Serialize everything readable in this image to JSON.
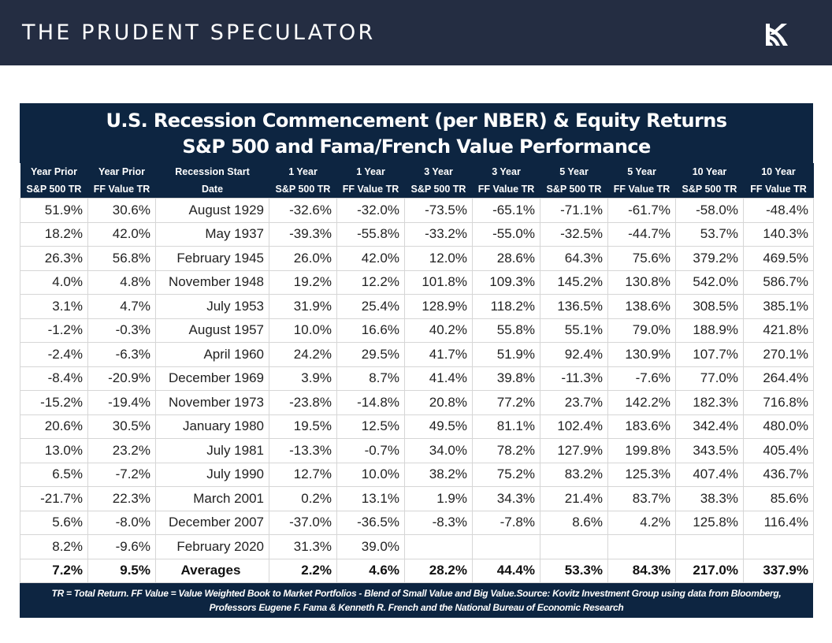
{
  "header": {
    "brand": "THE PRUDENT SPECULATOR",
    "logo_icon": "kovitz-k-logo"
  },
  "table": {
    "title": "U.S. Recession Commencement (per NBER) & Equity Returns",
    "subtitle": "S&P 500 and Fama/French Value Performance",
    "columns": [
      {
        "line1": "Year Prior",
        "line2": "S&P 500 TR"
      },
      {
        "line1": "Year Prior",
        "line2": "FF Value TR"
      },
      {
        "line1": "Recession Start",
        "line2": "Date"
      },
      {
        "line1": "1 Year",
        "line2": "S&P 500 TR"
      },
      {
        "line1": "1 Year",
        "line2": "FF Value TR"
      },
      {
        "line1": "3 Year",
        "line2": "S&P 500 TR"
      },
      {
        "line1": "3 Year",
        "line2": "FF Value TR"
      },
      {
        "line1": "5 Year",
        "line2": "S&P 500 TR"
      },
      {
        "line1": "5 Year",
        "line2": "FF Value TR"
      },
      {
        "line1": "10 Year",
        "line2": "S&P 500 TR"
      },
      {
        "line1": "10 Year",
        "line2": "FF Value TR"
      }
    ],
    "rows": [
      [
        "51.9%",
        "30.6%",
        "August 1929",
        "-32.6%",
        "-32.0%",
        "-73.5%",
        "-65.1%",
        "-71.1%",
        "-61.7%",
        "-58.0%",
        "-48.4%"
      ],
      [
        "18.2%",
        "42.0%",
        "May 1937",
        "-39.3%",
        "-55.8%",
        "-33.2%",
        "-55.0%",
        "-32.5%",
        "-44.7%",
        "53.7%",
        "140.3%"
      ],
      [
        "26.3%",
        "56.8%",
        "February 1945",
        "26.0%",
        "42.0%",
        "12.0%",
        "28.6%",
        "64.3%",
        "75.6%",
        "379.2%",
        "469.5%"
      ],
      [
        "4.0%",
        "4.8%",
        "November 1948",
        "19.2%",
        "12.2%",
        "101.8%",
        "109.3%",
        "145.2%",
        "130.8%",
        "542.0%",
        "586.7%"
      ],
      [
        "3.1%",
        "4.7%",
        "July 1953",
        "31.9%",
        "25.4%",
        "128.9%",
        "118.2%",
        "136.5%",
        "138.6%",
        "308.5%",
        "385.1%"
      ],
      [
        "-1.2%",
        "-0.3%",
        "August 1957",
        "10.0%",
        "16.6%",
        "40.2%",
        "55.8%",
        "55.1%",
        "79.0%",
        "188.9%",
        "421.8%"
      ],
      [
        "-2.4%",
        "-6.3%",
        "April 1960",
        "24.2%",
        "29.5%",
        "41.7%",
        "51.9%",
        "92.4%",
        "130.9%",
        "107.7%",
        "270.1%"
      ],
      [
        "-8.4%",
        "-20.9%",
        "December 1969",
        "3.9%",
        "8.7%",
        "41.4%",
        "39.8%",
        "-11.3%",
        "-7.6%",
        "77.0%",
        "264.4%"
      ],
      [
        "-15.2%",
        "-19.4%",
        "November 1973",
        "-23.8%",
        "-14.8%",
        "20.8%",
        "77.2%",
        "23.7%",
        "142.2%",
        "182.3%",
        "716.8%"
      ],
      [
        "20.6%",
        "30.5%",
        "January 1980",
        "19.5%",
        "12.5%",
        "49.5%",
        "81.1%",
        "102.4%",
        "183.6%",
        "342.4%",
        "480.0%"
      ],
      [
        "13.0%",
        "23.2%",
        "July 1981",
        "-13.3%",
        "-0.7%",
        "34.0%",
        "78.2%",
        "127.9%",
        "199.8%",
        "343.5%",
        "405.4%"
      ],
      [
        "6.5%",
        "-7.2%",
        "July 1990",
        "12.7%",
        "10.0%",
        "38.2%",
        "75.2%",
        "83.2%",
        "125.3%",
        "407.4%",
        "436.7%"
      ],
      [
        "-21.7%",
        "22.3%",
        "March 2001",
        "0.2%",
        "13.1%",
        "1.9%",
        "34.3%",
        "21.4%",
        "83.7%",
        "38.3%",
        "85.6%"
      ],
      [
        "5.6%",
        "-8.0%",
        "December 2007",
        "-37.0%",
        "-36.5%",
        "-8.3%",
        "-7.8%",
        "8.6%",
        "4.2%",
        "125.8%",
        "116.4%"
      ],
      [
        "8.2%",
        "-9.6%",
        "February 2020",
        "31.3%",
        "39.0%",
        "",
        "",
        "",
        "",
        "",
        ""
      ]
    ],
    "averages": [
      "7.2%",
      "9.5%",
      "Averages",
      "2.2%",
      "4.6%",
      "28.2%",
      "44.4%",
      "53.3%",
      "84.3%",
      "217.0%",
      "337.9%"
    ],
    "footnote_line1": "TR = Total Return. FF Value = Value Weighted Book to Market Portfolios - Blend of Small Value and Big Value.Source: Kovitz Investment Group using data from Bloomberg,",
    "footnote_line2": "Professors Eugene F. Fama & Kenneth R. French and the National Bureau of Economic Research"
  },
  "colors": {
    "topbar": "#242d42",
    "table_header": "#0d2541",
    "grid": "#d6d6d6"
  }
}
